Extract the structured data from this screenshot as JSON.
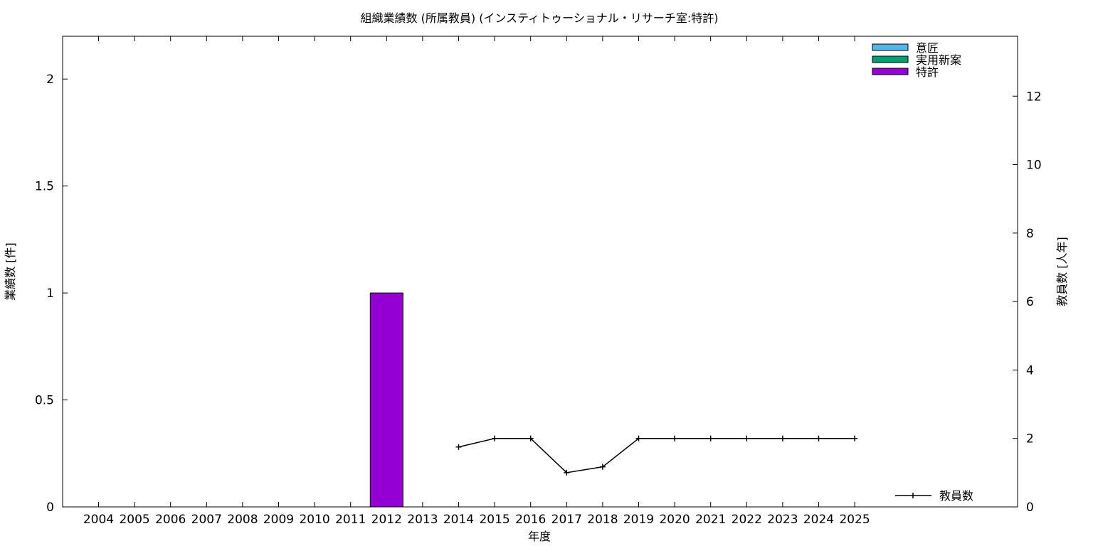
{
  "chart_data": {
    "type": "bar",
    "title": "組織業績数 (所属教員) (インスティトゥーショナル・リサーチ室:特許)",
    "xlabel": "年度",
    "ylabel": "業績数 [件]",
    "y2label": "教員数 [人年]",
    "categories": [
      "2004",
      "2005",
      "2006",
      "2007",
      "2008",
      "2009",
      "2010",
      "2011",
      "2012",
      "2013",
      "2014",
      "2015",
      "2016",
      "2017",
      "2018",
      "2019",
      "2020",
      "2021",
      "2022",
      "2023",
      "2024",
      "2025"
    ],
    "ylim": [
      0,
      2.2
    ],
    "yticks": [
      "0",
      "0.5",
      "1",
      "1.5",
      "2"
    ],
    "y2lim": [
      0,
      13.75
    ],
    "y2ticks": [
      "0",
      "2",
      "4",
      "6",
      "8",
      "10",
      "12"
    ],
    "series": [
      {
        "name": "意匠",
        "kind": "bar",
        "color": "#56B4E9",
        "values": [
          0,
          0,
          0,
          0,
          0,
          0,
          0,
          0,
          0,
          0,
          0,
          0,
          0,
          0,
          0,
          0,
          0,
          0,
          0,
          0,
          0,
          0
        ]
      },
      {
        "name": "実用新案",
        "kind": "bar",
        "color": "#009E73",
        "values": [
          0,
          0,
          0,
          0,
          0,
          0,
          0,
          0,
          0,
          0,
          0,
          0,
          0,
          0,
          0,
          0,
          0,
          0,
          0,
          0,
          0,
          0
        ]
      },
      {
        "name": "特許",
        "kind": "bar",
        "color": "#9400D3",
        "values": [
          0,
          0,
          0,
          0,
          0,
          0,
          0,
          0,
          1,
          0,
          0,
          0,
          0,
          0,
          0,
          0,
          0,
          0,
          0,
          0,
          0,
          0
        ]
      },
      {
        "name": "教員数",
        "kind": "line",
        "axis": "y2",
        "color": "#000000",
        "x": [
          "2014",
          "2015",
          "2016",
          "2017",
          "2018",
          "2019",
          "2020",
          "2021",
          "2022",
          "2023",
          "2024",
          "2025"
        ],
        "values": [
          1.75,
          2,
          2,
          1,
          1.17,
          2,
          2,
          2,
          2,
          2,
          2,
          2
        ]
      }
    ],
    "legend_position": "top-right (bars), bottom-right (line)",
    "grid": false
  }
}
